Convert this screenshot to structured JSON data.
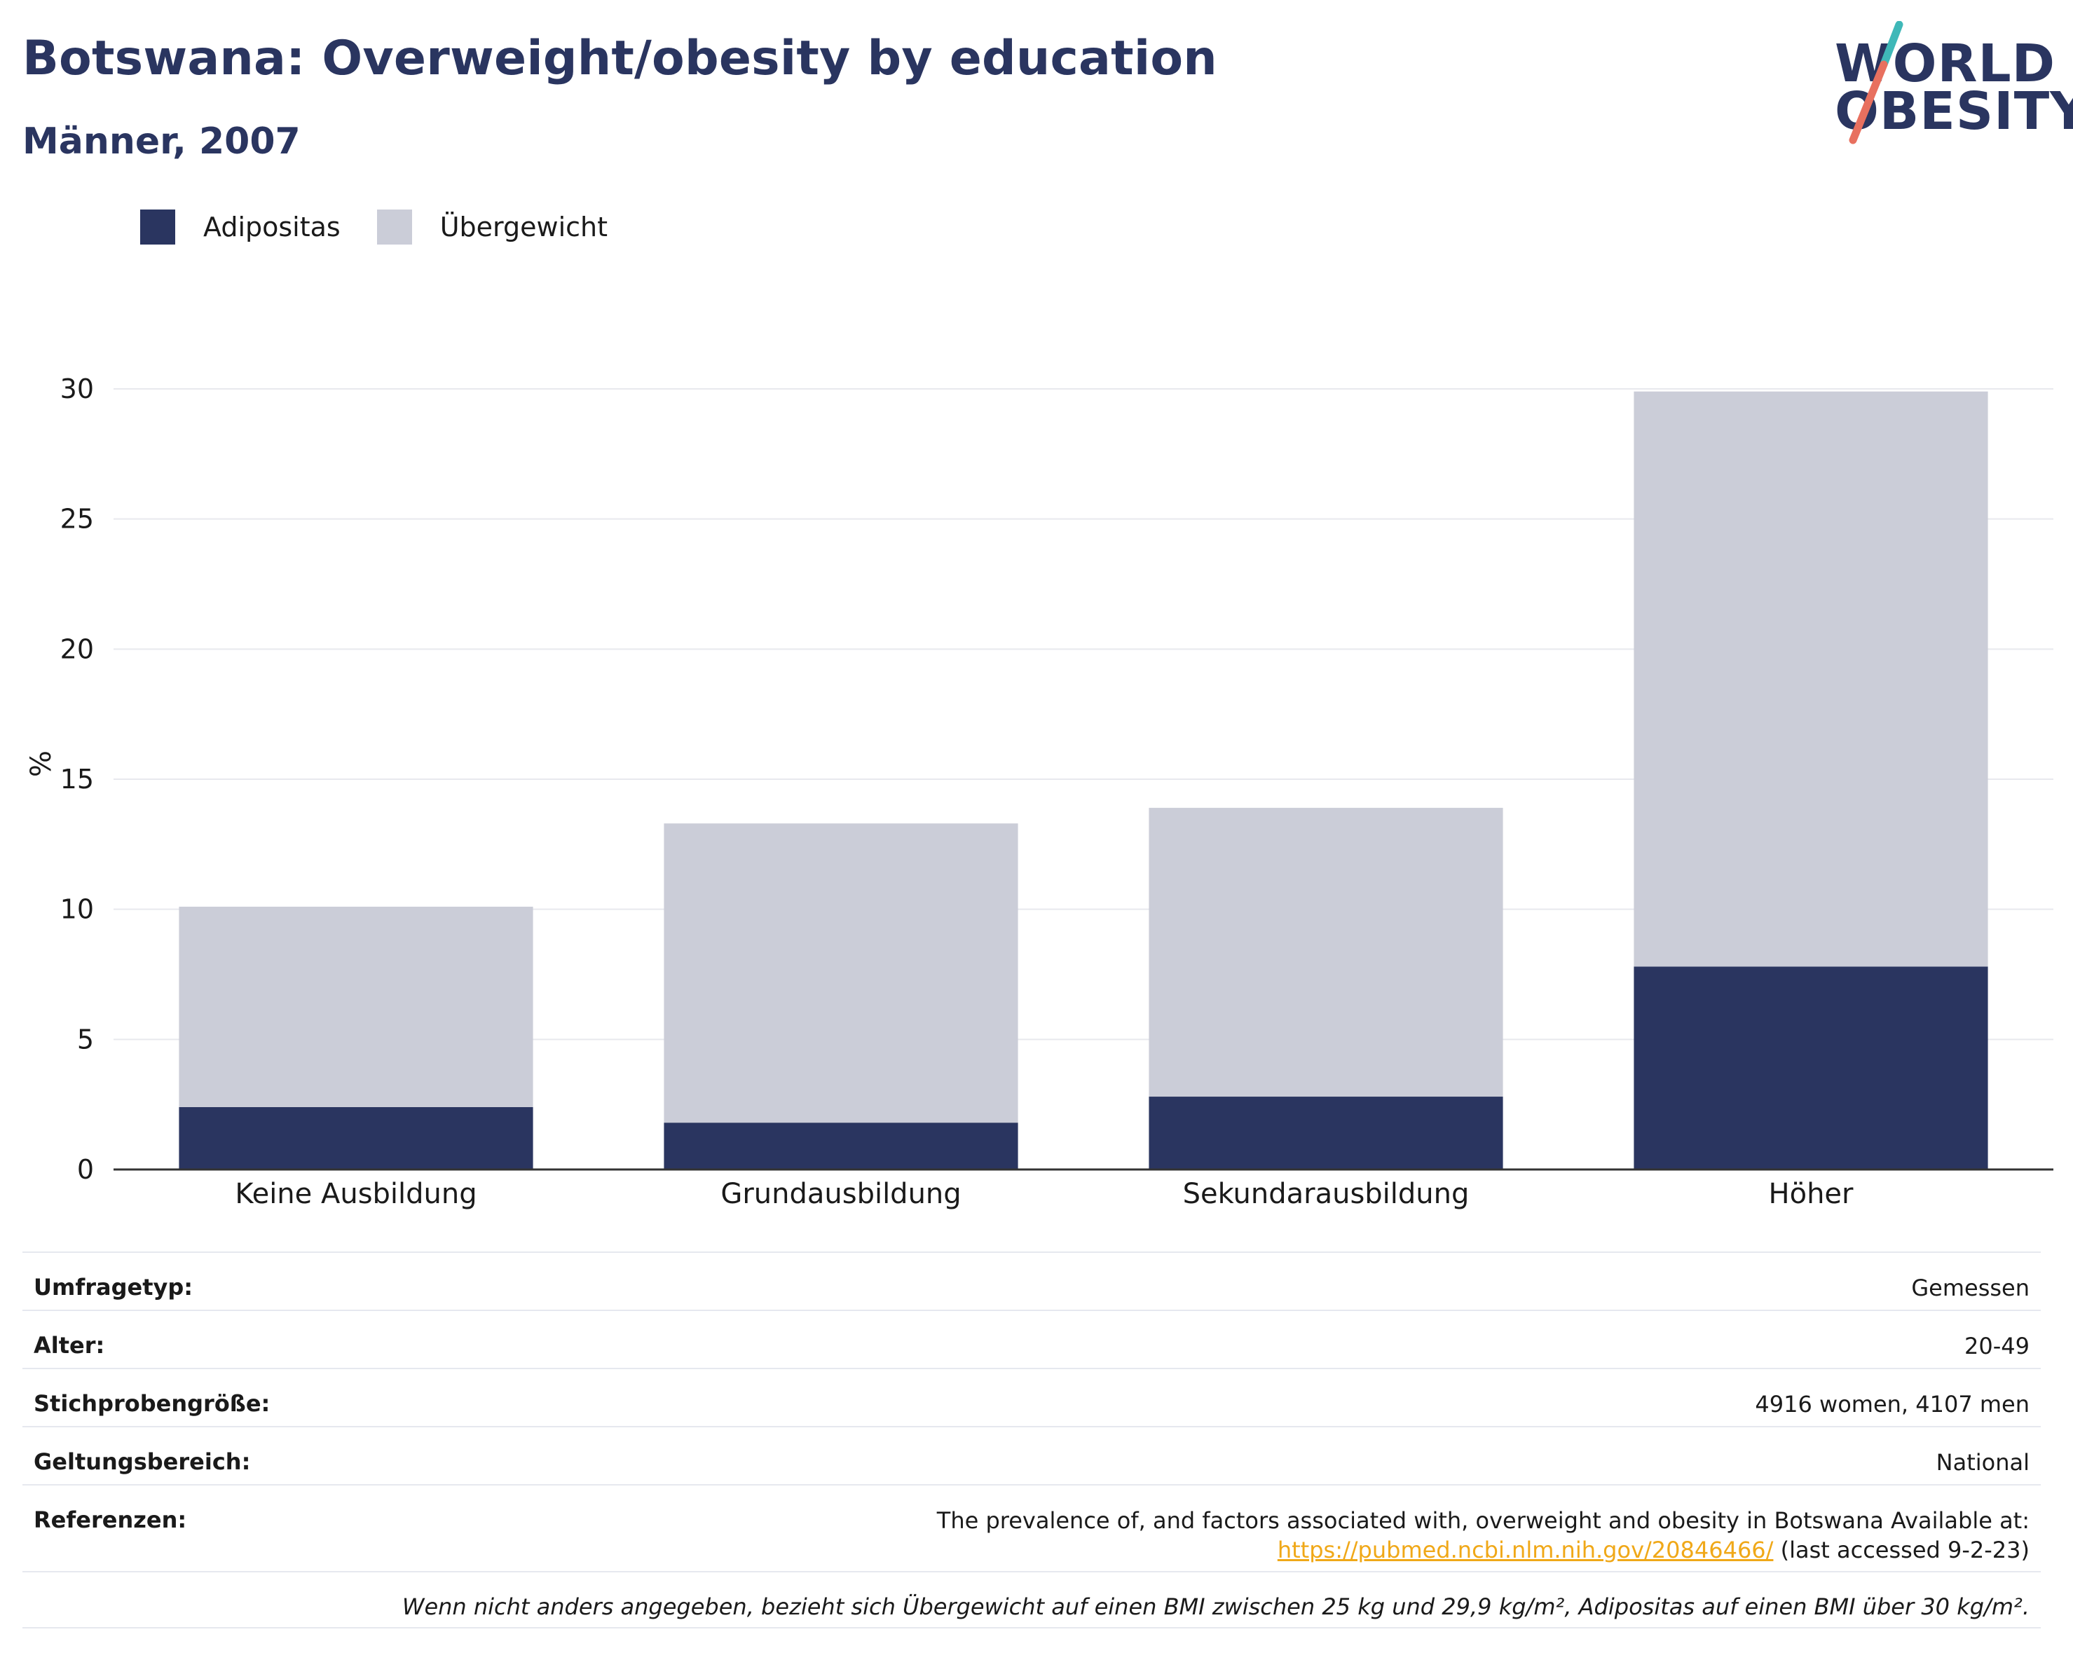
{
  "header": {
    "title": "Botswana: Overweight/obesity by education",
    "subtitle": "Männer, 2007"
  },
  "logo": {
    "line1": "WORLD",
    "line2": "OBESITY"
  },
  "colors": {
    "adipositas": "#2a3560",
    "uebergewicht": "#cbcdd8",
    "grid": "#e8e9ee",
    "axis": "#333333",
    "logo_teal": "#3fb8b8",
    "logo_coral": "#e8705f",
    "link": "#f0a818"
  },
  "chart_data": {
    "type": "bar",
    "stacked": true,
    "categories": [
      "Keine Ausbildung",
      "Grundausbildung",
      "Sekundarausbildung",
      "Höher"
    ],
    "series": [
      {
        "name": "Adipositas",
        "values": [
          2.4,
          1.8,
          2.8,
          7.8
        ]
      },
      {
        "name": "Übergewicht",
        "values": [
          7.7,
          11.5,
          11.1,
          22.1
        ]
      }
    ],
    "ylabel": "%",
    "ylim": [
      0,
      30
    ],
    "yticks": [
      0,
      5,
      10,
      15,
      20,
      25,
      30
    ],
    "grid": true,
    "legend_position": "top-left"
  },
  "info": {
    "survey_type": {
      "label": "Umfragetyp:",
      "value": "Gemessen"
    },
    "age": {
      "label": "Alter:",
      "value": "20-49"
    },
    "sample_size": {
      "label": "Stichprobengröße:",
      "value": "4916 women, 4107 men"
    },
    "scope": {
      "label": "Geltungsbereich:",
      "value": "National"
    },
    "references": {
      "label": "Referenzen:",
      "text": "The prevalence of, and factors associated with, overweight and obesity in Botswana Available at:",
      "link": "https://pubmed.ncbi.nlm.nih.gov/20846466/",
      "suffix": " (last accessed 9-2-23)"
    },
    "note": "Wenn nicht anders angegeben, bezieht sich Übergewicht auf einen BMI zwischen 25 kg und 29,9 kg/m², Adipositas auf einen BMI über 30 kg/m²."
  }
}
